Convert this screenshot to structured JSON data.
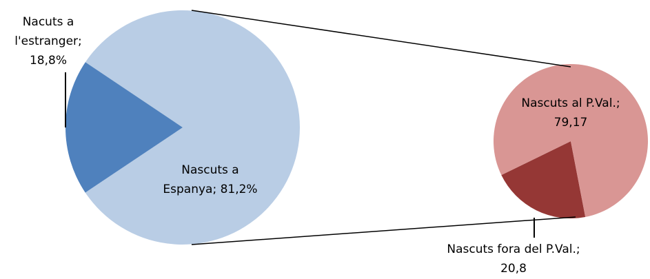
{
  "chart_data": [
    {
      "type": "pie",
      "values": [
        18.8,
        81.2
      ],
      "value_labels": [
        "Nacuts a l'estranger; 18,8%",
        "Nascuts a Espanya; 81,2%"
      ],
      "colors": [
        "#4f81bd",
        "#b9cde5"
      ]
    },
    {
      "type": "pie",
      "values": [
        79.17,
        20.8
      ],
      "value_labels": [
        "Nascuts al P.Val.; 79,17",
        "Nascuts fora del P.Val.; 20,8"
      ],
      "colors": [
        "#d99694",
        "#953735"
      ]
    }
  ]
}
